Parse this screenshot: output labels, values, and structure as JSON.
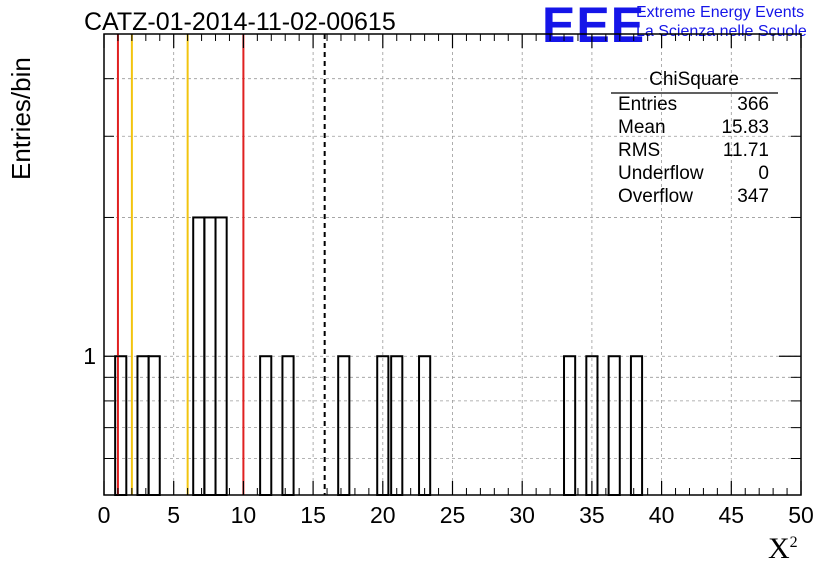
{
  "chart_data": {
    "type": "bar",
    "title": "CATZ-01-2014-11-02-00615",
    "xlabel": "X",
    "xlabel_superscript": "2",
    "ylabel": "Entries/bin",
    "xlim": [
      0,
      50
    ],
    "y_scale": "log",
    "ylim": [
      0.5,
      5
    ],
    "bin_width": 0.8,
    "bins": [
      {
        "x": 0.8,
        "count": 1
      },
      {
        "x": 2.4,
        "count": 1
      },
      {
        "x": 3.2,
        "count": 1
      },
      {
        "x": 6.4,
        "count": 2
      },
      {
        "x": 7.2,
        "count": 2
      },
      {
        "x": 8.0,
        "count": 2
      },
      {
        "x": 11.2,
        "count": 1
      },
      {
        "x": 12.8,
        "count": 1
      },
      {
        "x": 16.8,
        "count": 1
      },
      {
        "x": 19.6,
        "count": 1
      },
      {
        "x": 20.6,
        "count": 1
      },
      {
        "x": 22.6,
        "count": 1
      },
      {
        "x": 33.0,
        "count": 1
      },
      {
        "x": 34.6,
        "count": 1
      },
      {
        "x": 36.2,
        "count": 1
      },
      {
        "x": 37.8,
        "count": 1
      }
    ],
    "vertical_lines": [
      {
        "x": 1,
        "color": "#e02020",
        "style": "solid"
      },
      {
        "x": 2,
        "color": "#f2c40f",
        "style": "solid"
      },
      {
        "x": 6,
        "color": "#f2c40f",
        "style": "solid"
      },
      {
        "x": 10,
        "color": "#e02020",
        "style": "solid"
      },
      {
        "x": 15.83,
        "color": "#000000",
        "style": "dashed"
      }
    ],
    "x_ticks": [
      "0",
      "5",
      "10",
      "15",
      "20",
      "25",
      "30",
      "35",
      "40",
      "45",
      "50"
    ],
    "y_tick_labels": [
      {
        "value": 1,
        "label": "1"
      }
    ],
    "grid": true
  },
  "stats_box": {
    "title": "ChiSquare",
    "rows": [
      {
        "label": "Entries",
        "value": "366"
      },
      {
        "label": "Mean",
        "value": "15.83"
      },
      {
        "label": "RMS",
        "value": "11.71"
      },
      {
        "label": "Underflow",
        "value": "0"
      },
      {
        "label": "Overflow",
        "value": "347"
      }
    ]
  },
  "logo": {
    "mark": "EEE",
    "line1": "Extreme Energy Events",
    "line2": "La Scienza nelle Scuole",
    "color": "#1515e8"
  }
}
